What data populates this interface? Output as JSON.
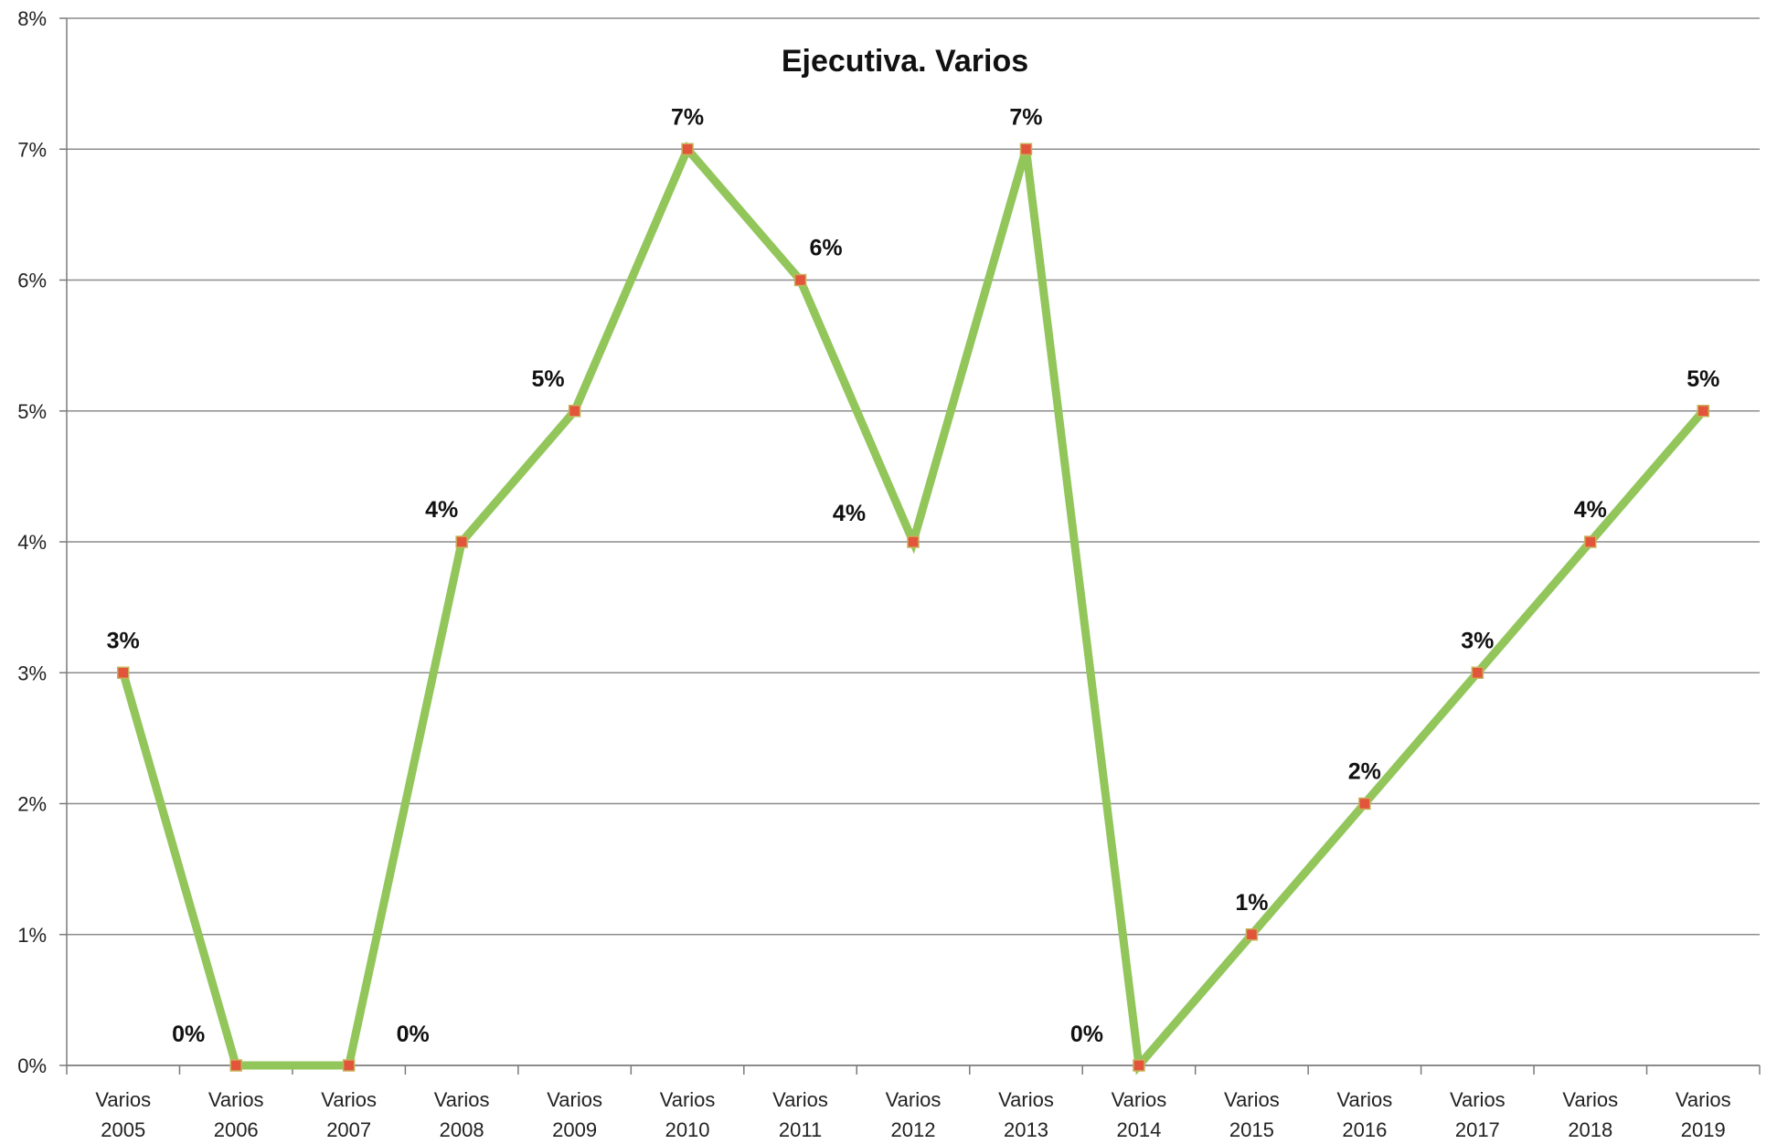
{
  "chart_data": {
    "type": "line",
    "title": "Ejecutiva. Varios",
    "xlabel": "",
    "ylabel": "",
    "categories": [
      "Varios 2005",
      "Varios 2006",
      "Varios 2007",
      "Varios 2008",
      "Varios 2009",
      "Varios 2010",
      "Varios 2011",
      "Varios 2012",
      "Varios 2013",
      "Varios 2014",
      "Varios 2015",
      "Varios 2016",
      "Varios 2017",
      "Varios 2018",
      "Varios 2019"
    ],
    "category_lines": [
      [
        "Varios",
        "2005"
      ],
      [
        "Varios",
        "2006"
      ],
      [
        "Varios",
        "2007"
      ],
      [
        "Varios",
        "2008"
      ],
      [
        "Varios",
        "2009"
      ],
      [
        "Varios",
        "2010"
      ],
      [
        "Varios",
        "2011"
      ],
      [
        "Varios",
        "2012"
      ],
      [
        "Varios",
        "2013"
      ],
      [
        "Varios",
        "2014"
      ],
      [
        "Varios",
        "2015"
      ],
      [
        "Varios",
        "2016"
      ],
      [
        "Varios",
        "2017"
      ],
      [
        "Varios",
        "2018"
      ],
      [
        "Varios",
        "2019"
      ]
    ],
    "series": [
      {
        "values": [
          3,
          0,
          0,
          4,
          5,
          7,
          6,
          4,
          7,
          0,
          1,
          2,
          3,
          4,
          5
        ],
        "data_labels": [
          "3%",
          "0%",
          "0%",
          "4%",
          "5%",
          "7%",
          "6%",
          "4%",
          "7%",
          "0%",
          "1%",
          "2%",
          "3%",
          "4%",
          "5%"
        ],
        "line_color": "#92c65a",
        "marker_color": "#e2553a"
      }
    ],
    "ylim": [
      0,
      8
    ],
    "yticks": [
      0,
      1,
      2,
      3,
      4,
      5,
      6,
      7,
      8
    ],
    "ytick_labels": [
      "0%",
      "1%",
      "2%",
      "3%",
      "4%",
      "5%",
      "6%",
      "7%",
      "8%"
    ],
    "grid": true,
    "legend": "none"
  }
}
